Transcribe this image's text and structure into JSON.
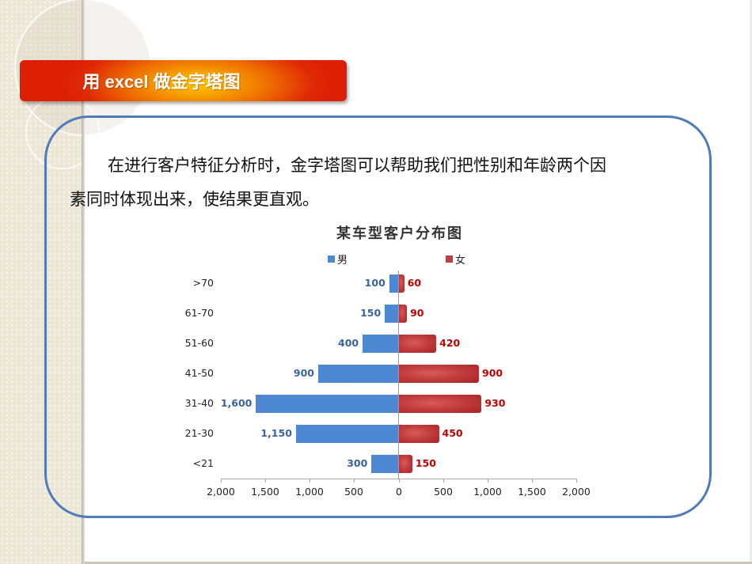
{
  "slide": {
    "title": "用 excel 做金字塔图",
    "paragraph_line1": "在进行客户特征分析时，金字塔图可以帮助我们把性别和年龄两个因",
    "paragraph_line2": "素同时体现出来，使结果更直观。",
    "colors": {
      "banner_center": "#ffc800",
      "banner_edge": "#dc1f05",
      "box_border": "#4f7cb8",
      "left_panel": "#ece6d6"
    }
  },
  "chart": {
    "title": "某车型客户分布图",
    "legend": [
      {
        "label": "男",
        "color": "#4f88d2"
      },
      {
        "label": "女",
        "color": "#c0392b"
      }
    ],
    "categories": [
      ">70",
      "61-70",
      "51-60",
      "41-50",
      "31-40",
      "21-30",
      "<21"
    ],
    "male_labels": [
      "100",
      "150",
      "400",
      "900",
      "1,600",
      "1,150",
      "300"
    ],
    "female_labels": [
      "60",
      "90",
      "420",
      "900",
      "930",
      "450",
      "150"
    ],
    "x_ticks": [
      "2,000",
      "1,500",
      "1,000",
      "500",
      "0",
      "500",
      "1,000",
      "1,500",
      "2,000"
    ]
  },
  "chart_data": {
    "type": "bar",
    "orientation": "horizontal",
    "subtype": "population-pyramid",
    "title": "某车型客户分布图",
    "categories": [
      ">70",
      "61-70",
      "51-60",
      "41-50",
      "31-40",
      "21-30",
      "<21"
    ],
    "series": [
      {
        "name": "男",
        "color": "#4f88d2",
        "values": [
          100,
          150,
          400,
          900,
          1600,
          1150,
          300
        ],
        "direction": "left"
      },
      {
        "name": "女",
        "color": "#c0392b",
        "values": [
          60,
          90,
          420,
          900,
          930,
          450,
          150
        ],
        "direction": "right"
      }
    ],
    "xlabel": "",
    "ylabel": "",
    "xlim": [
      -2000,
      2000
    ],
    "x_tick_labels": [
      "2,000",
      "1,500",
      "1,000",
      "500",
      "0",
      "500",
      "1,000",
      "1,500",
      "2,000"
    ],
    "grid": false,
    "legend_position": "top",
    "data_labels": true
  }
}
